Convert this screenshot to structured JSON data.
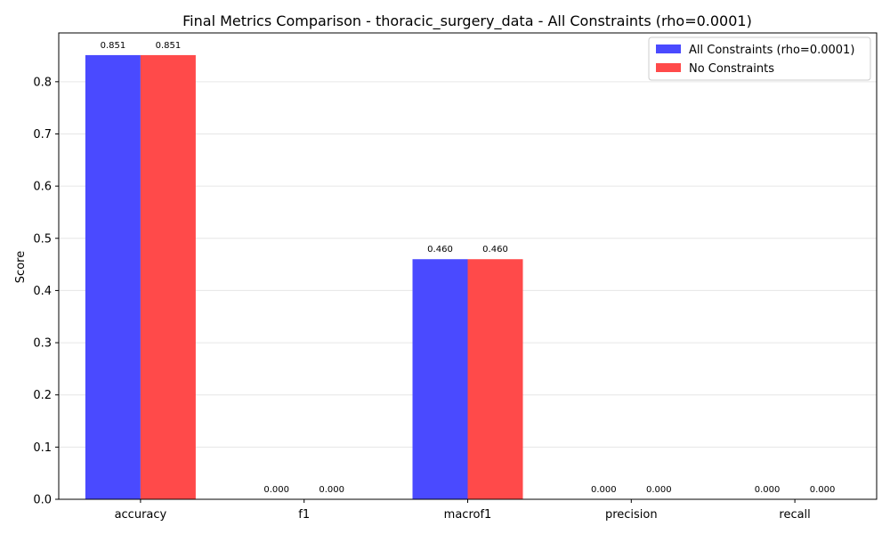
{
  "chart_data": {
    "type": "bar",
    "title": "Final Metrics Comparison - thoracic_surgery_data - All Constraints (rho=0.0001)",
    "xlabel": "",
    "ylabel": "Score",
    "categories": [
      "accuracy",
      "f1",
      "macrof1",
      "precision",
      "recall"
    ],
    "series": [
      {
        "name": "All Constraints (rho=0.0001)",
        "color": "#4a4aff",
        "values": [
          0.851,
          0.0,
          0.46,
          0.0,
          0.0
        ],
        "labels": [
          "0.851",
          "0.000",
          "0.460",
          "0.000",
          "0.000"
        ]
      },
      {
        "name": "No Constraints",
        "color": "#ff4a4a",
        "values": [
          0.851,
          0.0,
          0.46,
          0.0,
          0.0
        ],
        "labels": [
          "0.851",
          "0.000",
          "0.460",
          "0.000",
          "0.000"
        ]
      }
    ],
    "ylim": [
      0,
      0.8935
    ],
    "yticks": [
      0.0,
      0.1,
      0.2,
      0.3,
      0.4,
      0.5,
      0.6,
      0.7,
      0.8
    ],
    "ytick_labels": [
      "0.0",
      "0.1",
      "0.2",
      "0.3",
      "0.4",
      "0.5",
      "0.6",
      "0.7",
      "0.8"
    ],
    "grid": "y",
    "legend": "top-right"
  }
}
